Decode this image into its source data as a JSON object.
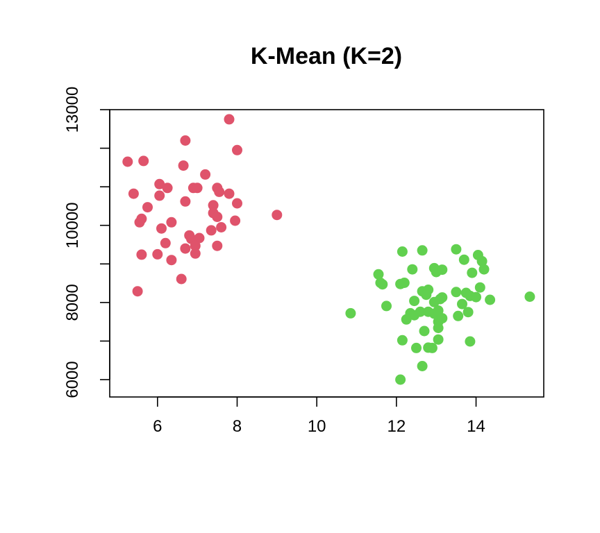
{
  "chart_data": {
    "type": "scatter",
    "title": "K-Mean (K=2)",
    "xlabel": "",
    "ylabel": "",
    "xlim": [
      4.8,
      15.7
    ],
    "ylim": [
      5550,
      13000
    ],
    "x_ticks": [
      6,
      8,
      10,
      12,
      14
    ],
    "y_ticks": [
      6000,
      8000,
      10000,
      13000
    ],
    "y_minor_ticks": [
      7000,
      9000,
      11000,
      12000
    ],
    "grid": false,
    "legend": "none",
    "series": [
      {
        "color": "#DF536B",
        "points": [
          [
            5.25,
            11650
          ],
          [
            5.65,
            11670
          ],
          [
            6.7,
            12200
          ],
          [
            7.8,
            12750
          ],
          [
            8.0,
            11950
          ],
          [
            6.65,
            11550
          ],
          [
            7.2,
            11320
          ],
          [
            5.4,
            10820
          ],
          [
            6.05,
            11070
          ],
          [
            6.25,
            10970
          ],
          [
            6.9,
            10970
          ],
          [
            7.0,
            10970
          ],
          [
            7.5,
            10970
          ],
          [
            7.55,
            10870
          ],
          [
            7.8,
            10820
          ],
          [
            6.05,
            10770
          ],
          [
            6.7,
            10620
          ],
          [
            5.75,
            10470
          ],
          [
            7.4,
            10520
          ],
          [
            8.0,
            10570
          ],
          [
            7.4,
            10320
          ],
          [
            7.5,
            10220
          ],
          [
            5.6,
            10170
          ],
          [
            5.55,
            10080
          ],
          [
            6.35,
            10080
          ],
          [
            7.95,
            10120
          ],
          [
            9.0,
            10270
          ],
          [
            6.1,
            9920
          ],
          [
            7.6,
            9950
          ],
          [
            7.35,
            9870
          ],
          [
            6.8,
            9740
          ],
          [
            6.85,
            9650
          ],
          [
            7.05,
            9670
          ],
          [
            6.2,
            9540
          ],
          [
            6.7,
            9400
          ],
          [
            6.95,
            9470
          ],
          [
            7.5,
            9470
          ],
          [
            5.6,
            9240
          ],
          [
            6.0,
            9250
          ],
          [
            6.95,
            9270
          ],
          [
            6.35,
            9100
          ],
          [
            6.6,
            8610
          ],
          [
            5.5,
            8290
          ]
        ]
      },
      {
        "color": "#61D04F",
        "points": [
          [
            12.15,
            9320
          ],
          [
            12.65,
            9350
          ],
          [
            13.5,
            9380
          ],
          [
            14.05,
            9230
          ],
          [
            13.7,
            9110
          ],
          [
            14.15,
            9070
          ],
          [
            12.4,
            8860
          ],
          [
            12.95,
            8890
          ],
          [
            13.0,
            8790
          ],
          [
            13.15,
            8850
          ],
          [
            14.2,
            8860
          ],
          [
            13.9,
            8770
          ],
          [
            11.55,
            8730
          ],
          [
            11.6,
            8510
          ],
          [
            11.65,
            8470
          ],
          [
            12.1,
            8480
          ],
          [
            12.2,
            8510
          ],
          [
            12.65,
            8290
          ],
          [
            12.8,
            8330
          ],
          [
            12.75,
            8200
          ],
          [
            13.5,
            8270
          ],
          [
            13.75,
            8250
          ],
          [
            13.85,
            8170
          ],
          [
            14.0,
            8140
          ],
          [
            14.1,
            8390
          ],
          [
            14.35,
            8070
          ],
          [
            13.1,
            8090
          ],
          [
            13.15,
            8130
          ],
          [
            12.95,
            8010
          ],
          [
            12.45,
            8040
          ],
          [
            13.65,
            7960
          ],
          [
            11.75,
            7910
          ],
          [
            12.35,
            7720
          ],
          [
            12.45,
            7670
          ],
          [
            12.6,
            7760
          ],
          [
            12.8,
            7760
          ],
          [
            12.95,
            7710
          ],
          [
            13.05,
            7790
          ],
          [
            13.55,
            7650
          ],
          [
            13.8,
            7750
          ],
          [
            12.25,
            7560
          ],
          [
            13.05,
            7500
          ],
          [
            13.15,
            7590
          ],
          [
            10.85,
            7720
          ],
          [
            13.05,
            7340
          ],
          [
            12.7,
            7260
          ],
          [
            12.15,
            7020
          ],
          [
            13.05,
            7040
          ],
          [
            13.85,
            6990
          ],
          [
            12.5,
            6820
          ],
          [
            12.8,
            6830
          ],
          [
            12.9,
            6820
          ],
          [
            12.65,
            6350
          ],
          [
            12.1,
            6000
          ],
          [
            15.35,
            8150
          ]
        ]
      }
    ]
  }
}
